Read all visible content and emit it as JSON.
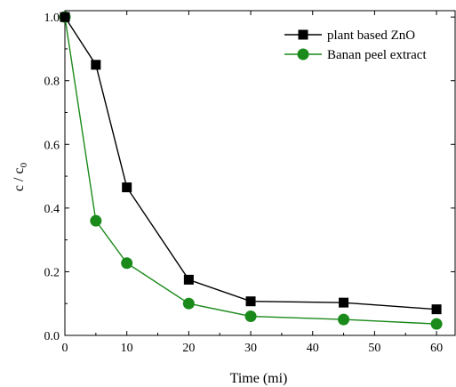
{
  "chart_data": {
    "type": "line",
    "xlabel": "Time (mi)",
    "ylabel": {
      "base": "c / c",
      "sub": "0"
    },
    "xlim": [
      0,
      63
    ],
    "ylim": [
      0,
      1.02
    ],
    "xticks": [
      0,
      10,
      20,
      30,
      40,
      50,
      60
    ],
    "xtick_labels": [
      "0",
      "10",
      "20",
      "30",
      "40",
      "50",
      "60"
    ],
    "yticks": [
      0.0,
      0.2,
      0.4,
      0.6,
      0.8,
      1.0
    ],
    "ytick_labels": [
      "0.0",
      "0.2",
      "0.4",
      "0.6",
      "0.8",
      "1.0"
    ],
    "grid": false,
    "legend_position": "top-right",
    "series": [
      {
        "name": "plant based ZnO",
        "marker": "square",
        "color": "#000000",
        "x": [
          0,
          5,
          10,
          20,
          30,
          45,
          60
        ],
        "y": [
          1.0,
          0.85,
          0.465,
          0.175,
          0.107,
          0.103,
          0.082
        ]
      },
      {
        "name": "Banan peel extract",
        "marker": "circle",
        "color": "#1a8a1a",
        "x": [
          0,
          5,
          10,
          20,
          30,
          45,
          60
        ],
        "y": [
          1.0,
          0.36,
          0.227,
          0.1,
          0.06,
          0.05,
          0.036
        ]
      }
    ]
  }
}
